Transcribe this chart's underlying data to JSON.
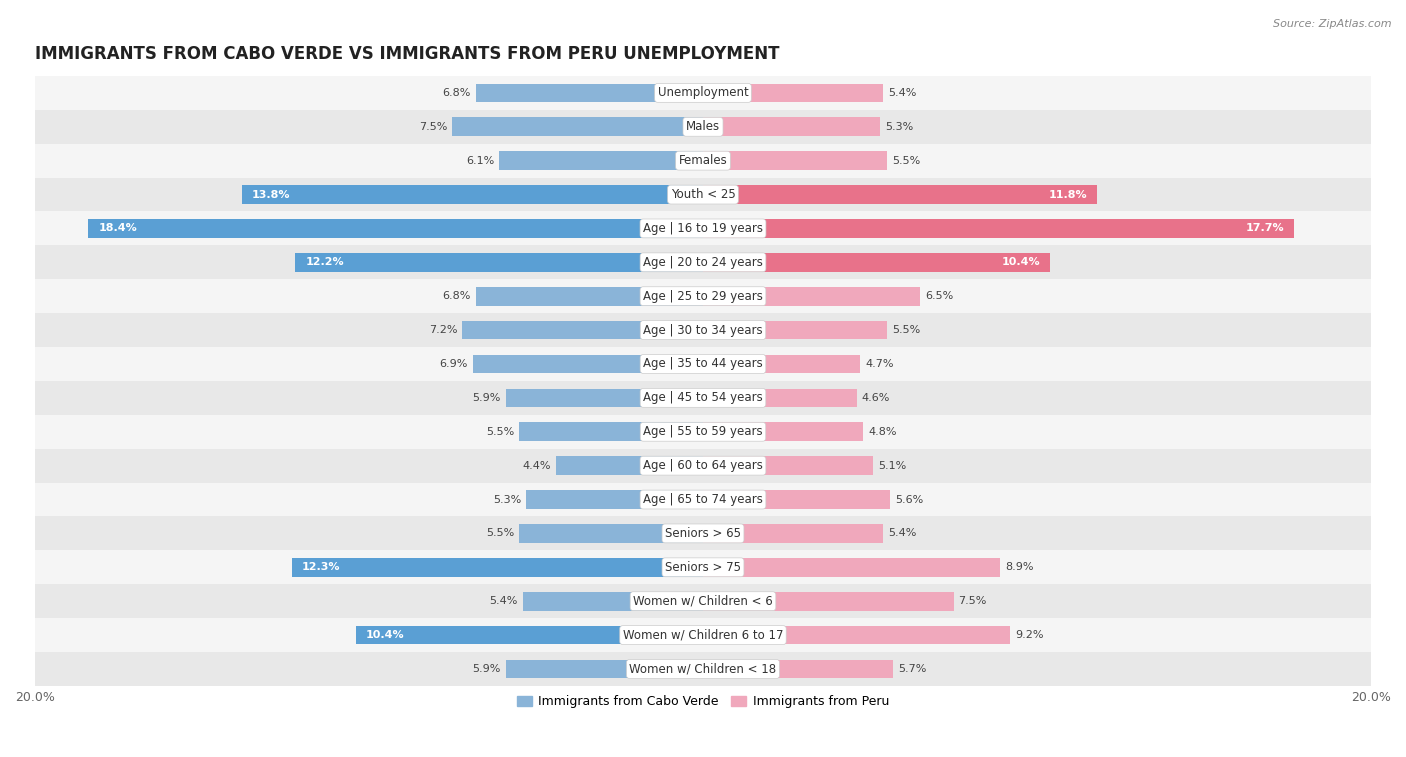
{
  "title": "IMMIGRANTS FROM CABO VERDE VS IMMIGRANTS FROM PERU UNEMPLOYMENT",
  "source": "Source: ZipAtlas.com",
  "categories": [
    "Unemployment",
    "Males",
    "Females",
    "Youth < 25",
    "Age | 16 to 19 years",
    "Age | 20 to 24 years",
    "Age | 25 to 29 years",
    "Age | 30 to 34 years",
    "Age | 35 to 44 years",
    "Age | 45 to 54 years",
    "Age | 55 to 59 years",
    "Age | 60 to 64 years",
    "Age | 65 to 74 years",
    "Seniors > 65",
    "Seniors > 75",
    "Women w/ Children < 6",
    "Women w/ Children 6 to 17",
    "Women w/ Children < 18"
  ],
  "cabo_verde": [
    6.8,
    7.5,
    6.1,
    13.8,
    18.4,
    12.2,
    6.8,
    7.2,
    6.9,
    5.9,
    5.5,
    4.4,
    5.3,
    5.5,
    12.3,
    5.4,
    10.4,
    5.9
  ],
  "peru": [
    5.4,
    5.3,
    5.5,
    11.8,
    17.7,
    10.4,
    6.5,
    5.5,
    4.7,
    4.6,
    4.8,
    5.1,
    5.6,
    5.4,
    8.9,
    7.5,
    9.2,
    5.7
  ],
  "cabo_verde_color_normal": "#8ab4d8",
  "cabo_verde_color_highlight": "#5a9fd4",
  "peru_color_normal": "#f0a8bc",
  "peru_color_highlight": "#e8728a",
  "row_bg_dark": "#e8e8e8",
  "row_bg_light": "#f5f5f5",
  "label_bg": "#ffffff",
  "xlim": 20.0,
  "bar_height": 0.55,
  "title_fontsize": 12,
  "label_fontsize": 8.5,
  "value_fontsize": 8,
  "legend_fontsize": 9,
  "source_fontsize": 8,
  "highlight_threshold": 9.5
}
